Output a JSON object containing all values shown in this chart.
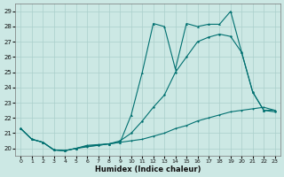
{
  "xlabel": "Humidex (Indice chaleur)",
  "xlim": [
    -0.5,
    23.5
  ],
  "ylim": [
    19.5,
    29.5
  ],
  "yticks": [
    20,
    21,
    22,
    23,
    24,
    25,
    26,
    27,
    28,
    29
  ],
  "xticks": [
    0,
    1,
    2,
    3,
    4,
    5,
    6,
    7,
    8,
    9,
    10,
    11,
    12,
    13,
    14,
    15,
    16,
    17,
    18,
    19,
    20,
    21,
    22,
    23
  ],
  "bg_color": "#cce8e4",
  "grid_color": "#aacfcb",
  "line_color": "#007070",
  "line1_x": [
    0,
    1,
    2,
    3,
    4,
    5,
    6,
    7,
    8,
    9,
    10,
    11,
    12,
    13,
    14,
    15,
    16,
    17,
    18,
    19,
    20,
    21,
    22,
    23
  ],
  "line1_y": [
    21.3,
    20.6,
    20.4,
    19.9,
    19.85,
    20.0,
    20.2,
    20.25,
    20.3,
    20.4,
    22.2,
    25.0,
    28.2,
    28.0,
    25.2,
    28.2,
    28.0,
    28.15,
    28.15,
    29.0,
    26.3,
    23.7,
    22.5,
    22.5
  ],
  "line2_x": [
    0,
    1,
    2,
    3,
    4,
    5,
    6,
    7,
    8,
    9,
    10,
    11,
    12,
    13,
    14,
    15,
    16,
    17,
    18,
    19,
    20,
    21,
    22,
    23
  ],
  "line2_y": [
    21.3,
    20.6,
    20.4,
    19.9,
    19.85,
    20.0,
    20.15,
    20.2,
    20.3,
    20.5,
    21.0,
    21.8,
    22.7,
    23.5,
    25.0,
    26.0,
    27.0,
    27.3,
    27.5,
    27.35,
    26.3,
    23.7,
    22.5,
    22.4
  ],
  "line3_x": [
    0,
    1,
    2,
    3,
    4,
    5,
    6,
    7,
    8,
    9,
    10,
    11,
    12,
    13,
    14,
    15,
    16,
    17,
    18,
    19,
    20,
    21,
    22,
    23
  ],
  "line3_y": [
    21.3,
    20.6,
    20.4,
    19.9,
    19.85,
    20.0,
    20.1,
    20.2,
    20.3,
    20.4,
    20.5,
    20.6,
    20.8,
    21.0,
    21.3,
    21.5,
    21.8,
    22.0,
    22.2,
    22.4,
    22.5,
    22.6,
    22.7,
    22.5
  ]
}
